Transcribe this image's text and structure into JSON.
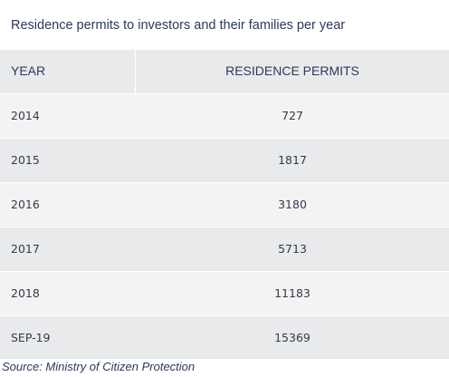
{
  "title": "Residence permits to investors and their families per year",
  "source": "Source: Ministry of Citizen Protection",
  "chart_data": {
    "type": "table",
    "title": "Residence permits to investors and their families per year",
    "columns": [
      "YEAR",
      "RESIDENCE PERMITS"
    ],
    "rows": [
      {
        "year": "2014",
        "value": "727"
      },
      {
        "year": "2015",
        "value": "1817"
      },
      {
        "year": "2016",
        "value": "3180"
      },
      {
        "year": "2017",
        "value": "5713"
      },
      {
        "year": "2018",
        "value": "11183"
      },
      {
        "year": "SEP-19",
        "value": "15369"
      }
    ]
  }
}
